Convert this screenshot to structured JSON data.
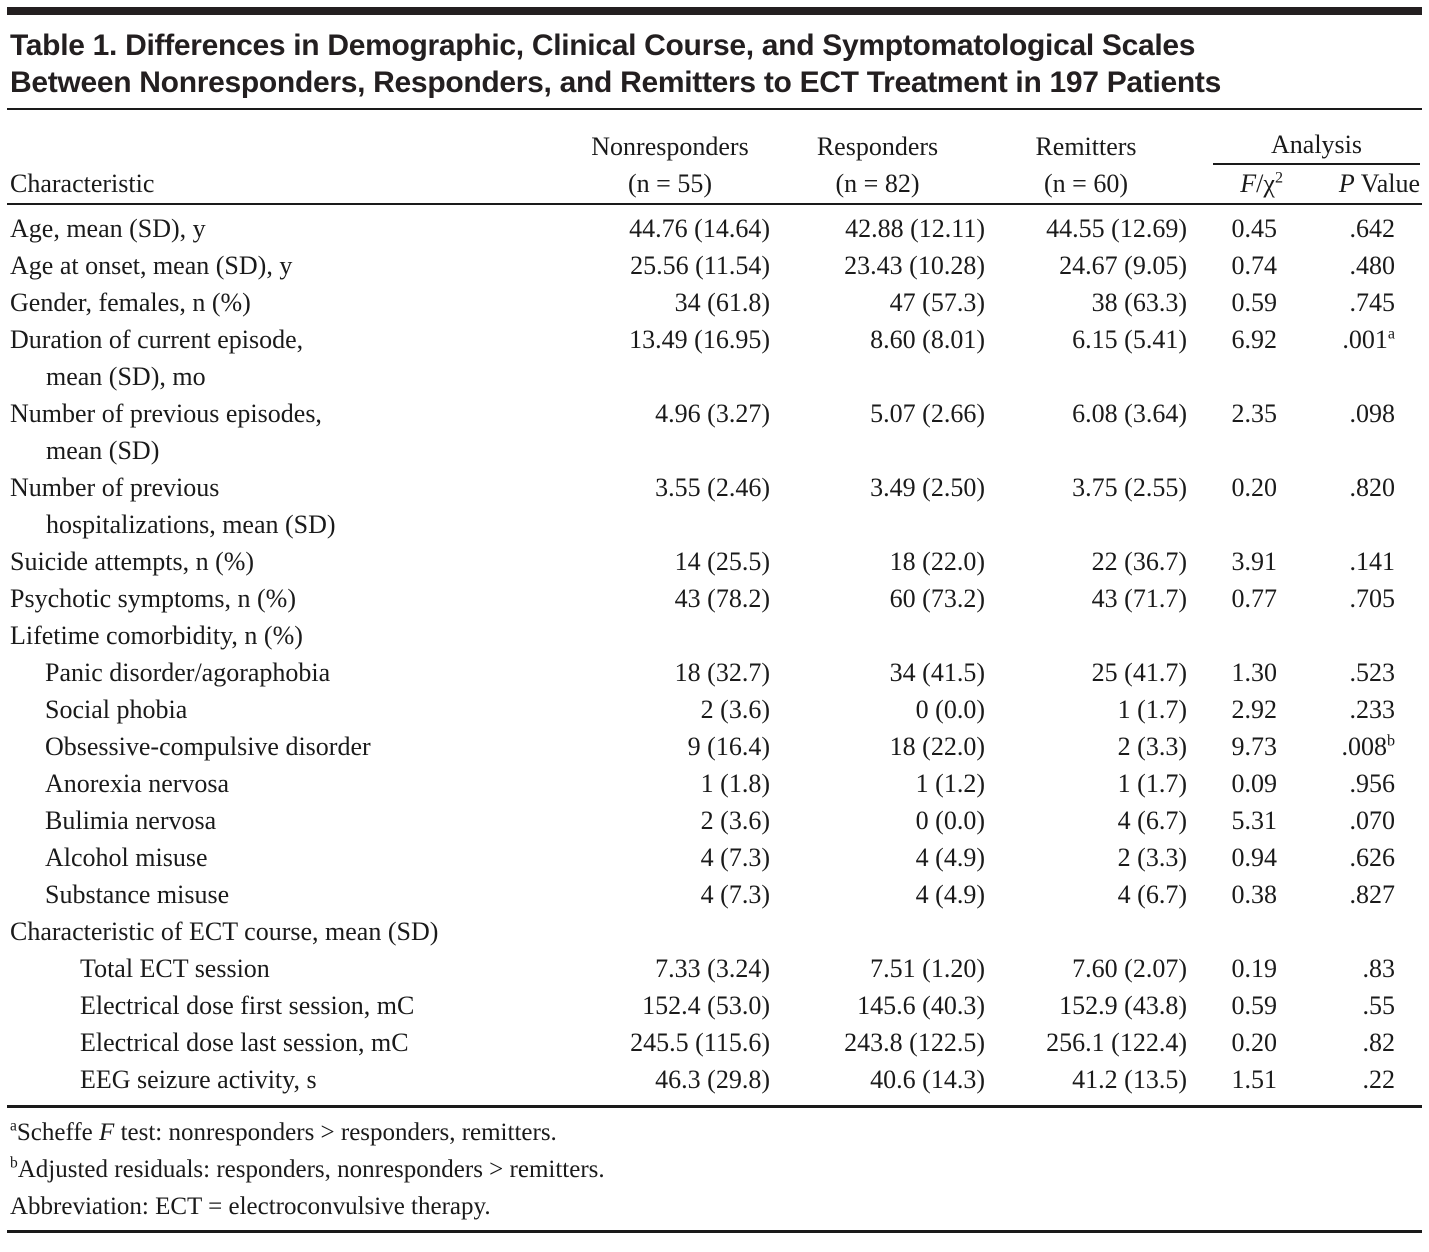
{
  "colors": {
    "background": "#ffffff",
    "text": "#1a1a1a",
    "title_text": "#231f20",
    "rule": "#1a1a1a"
  },
  "title_line1": "Table 1. Differences in Demographic, Clinical Course, and Symptomatological Scales",
  "title_line2": "Between Nonresponders, Responders, and Remitters to ECT Treatment in 197 Patients",
  "header": {
    "characteristic": "Characteristic",
    "groups": [
      {
        "name": "Nonresponders",
        "n": "(n = 55)"
      },
      {
        "name": "Responders",
        "n": "(n = 82)"
      },
      {
        "name": "Remitters",
        "n": "(n = 60)"
      }
    ],
    "analysis": "Analysis",
    "f_label_f": "F",
    "f_label_chi": "/χ",
    "f_label_sup": "2",
    "p_label_p": "P",
    "p_label_rest": " Value"
  },
  "rows": [
    {
      "label": "Age, mean (SD), y",
      "v1": "44.76 (14.64)",
      "v2": "42.88 (12.11)",
      "v3": "44.55 (12.69)",
      "f": "0.45",
      "p": ".642"
    },
    {
      "label": "Age at onset, mean (SD), y",
      "v1": "25.56 (11.54)",
      "v2": "23.43 (10.28)",
      "v3": "24.67 (9.05)",
      "f": "0.74",
      "p": ".480"
    },
    {
      "label": "Gender, females, n (%)",
      "v1": "34 (61.8)",
      "v2": "47 (57.3)",
      "v3": "38 (63.3)",
      "f": "0.59",
      "p": ".745"
    },
    {
      "label": "Duration of current episode,",
      "label2": "mean (SD), mo",
      "v1": "13.49 (16.95)",
      "v2": "8.60 (8.01)",
      "v3": "6.15 (5.41)",
      "f": "6.92",
      "p": ".001",
      "p_sup": "a"
    },
    {
      "label": "Number of previous episodes,",
      "label2": "mean (SD)",
      "v1": "4.96 (3.27)",
      "v2": "5.07 (2.66)",
      "v3": "6.08 (3.64)",
      "f": "2.35",
      "p": ".098"
    },
    {
      "label": "Number of previous",
      "label2": "hospitalizations, mean (SD)",
      "v1": "3.55 (2.46)",
      "v2": "3.49 (2.50)",
      "v3": "3.75 (2.55)",
      "f": "0.20",
      "p": ".820"
    },
    {
      "label": "Suicide attempts, n (%)",
      "v1": "14 (25.5)",
      "v2": "18 (22.0)",
      "v3": "22 (36.7)",
      "f": "3.91",
      "p": ".141"
    },
    {
      "label": "Psychotic symptoms, n (%)",
      "v1": "43 (78.2)",
      "v2": "60 (73.2)",
      "v3": "43 (71.7)",
      "f": "0.77",
      "p": ".705"
    },
    {
      "label": "Lifetime comorbidity, n (%)"
    },
    {
      "label": "Panic disorder/agoraphobia",
      "v1": "18 (32.7)",
      "v2": "34 (41.5)",
      "v3": "25 (41.7)",
      "f": "1.30",
      "p": ".523"
    },
    {
      "label": "Social phobia",
      "v1": "2 (3.6)",
      "v2": "0 (0.0)",
      "v3": "1 (1.7)",
      "f": "2.92",
      "p": ".233"
    },
    {
      "label": "Obsessive-compulsive disorder",
      "v1": "9 (16.4)",
      "v2": "18 (22.0)",
      "v3": "2 (3.3)",
      "f": "9.73",
      "p": ".008",
      "p_sup": "b"
    },
    {
      "label": "Anorexia nervosa",
      "v1": "1 (1.8)",
      "v2": "1 (1.2)",
      "v3": "1 (1.7)",
      "f": "0.09",
      "p": ".956"
    },
    {
      "label": "Bulimia nervosa",
      "v1": "2 (3.6)",
      "v2": "0 (0.0)",
      "v3": "4 (6.7)",
      "f": "5.31",
      "p": ".070"
    },
    {
      "label": "Alcohol misuse",
      "v1": "4 (7.3)",
      "v2": "4 (4.9)",
      "v3": "2 (3.3)",
      "f": "0.94",
      "p": ".626"
    },
    {
      "label": "Substance misuse",
      "v1": "4 (7.3)",
      "v2": "4 (4.9)",
      "v3": "4 (6.7)",
      "f": "0.38",
      "p": ".827"
    },
    {
      "label": "Characteristic of ECT course, mean (SD)"
    },
    {
      "label": "Total ECT session",
      "v1": "7.33 (3.24)",
      "v2": "7.51 (1.20)",
      "v3": "7.60 (2.07)",
      "f": "0.19",
      "p": ".83"
    },
    {
      "label": "Electrical dose first session, mC",
      "v1": "152.4 (53.0)",
      "v2": "145.6 (40.3)",
      "v3": "152.9 (43.8)",
      "f": "0.59",
      "p": ".55"
    },
    {
      "label": "Electrical dose last session, mC",
      "v1": "245.5 (115.6)",
      "v2": "243.8 (122.5)",
      "v3": "256.1 (122.4)",
      "f": "0.20",
      "p": ".82"
    },
    {
      "label": "EEG seizure activity, s",
      "v1": "46.3 (29.8)",
      "v2": "40.6 (14.3)",
      "v3": "41.2 (13.5)",
      "f": "1.51",
      "p": ".22"
    }
  ],
  "footnotes": [
    {
      "sup": "a",
      "t1": "Scheffe ",
      "i1": "F",
      "t2": " test: nonresponders > responders, remitters."
    },
    {
      "sup": "b",
      "t1": "Adjusted residuals: responders, nonresponders > remitters."
    },
    {
      "t1": "Abbreviation: ECT = electroconvulsive therapy."
    }
  ]
}
